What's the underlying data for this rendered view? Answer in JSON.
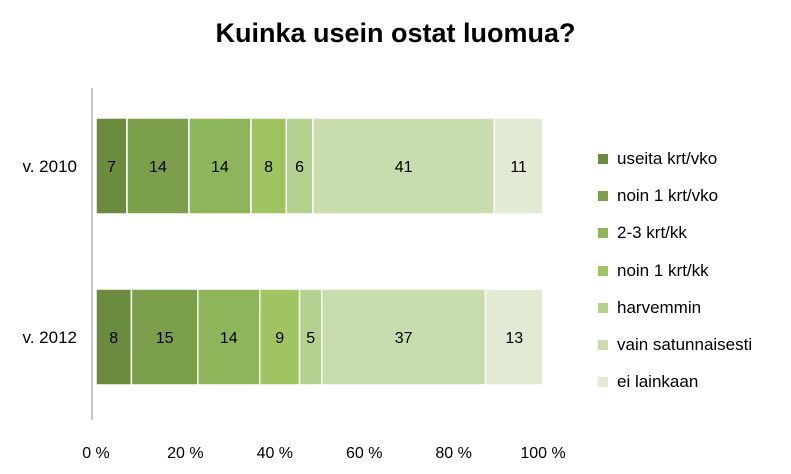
{
  "chart_data": {
    "type": "bar",
    "orientation": "horizontal",
    "stacked": "percent",
    "title": "Kuinka usein ostat luomua?",
    "xlabel": "",
    "ylabel": "",
    "categories": [
      "v. 2010",
      "v. 2012"
    ],
    "xlim": [
      0,
      100
    ],
    "x_ticks": [
      0,
      20,
      40,
      60,
      80,
      100
    ],
    "x_tick_labels": [
      "0 %",
      "20 %",
      "40 %",
      "60 %",
      "80 %",
      "100 %"
    ],
    "grid": false,
    "legend_position": "right",
    "series": [
      {
        "name": "useita krt/vko",
        "values": [
          7,
          8
        ],
        "color": "#6b8c3e"
      },
      {
        "name": "noin 1 krt/vko",
        "values": [
          14,
          15
        ],
        "color": "#7c9f4b"
      },
      {
        "name": "2-3 krt/kk",
        "values": [
          14,
          14
        ],
        "color": "#8db55a"
      },
      {
        "name": "noin 1 krt/kk",
        "values": [
          8,
          9
        ],
        "color": "#9fc461"
      },
      {
        "name": "harvemmin",
        "values": [
          6,
          5
        ],
        "color": "#b4d190"
      },
      {
        "name": "vain satunnaisesti",
        "values": [
          41,
          37
        ],
        "color": "#c8dcae"
      },
      {
        "name": "ei lainkaan",
        "values": [
          11,
          13
        ],
        "color": "#e2ead4"
      }
    ]
  }
}
